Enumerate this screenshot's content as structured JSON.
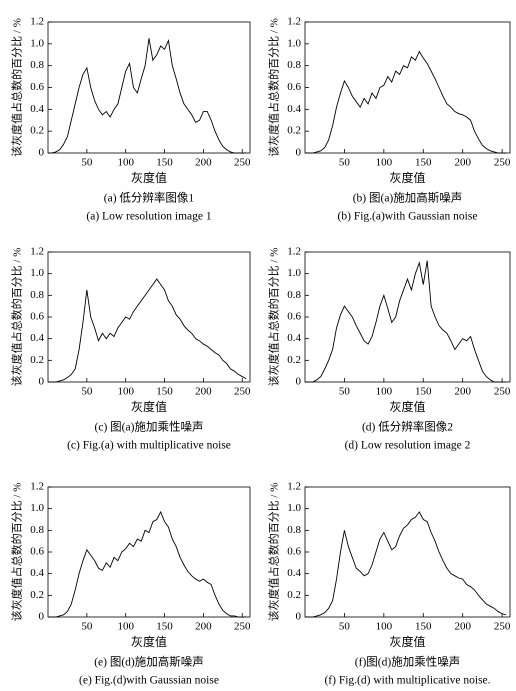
{
  "chart_data": [
    {
      "type": "line",
      "xlabel": "灰度值",
      "ylabel": "该灰度值占总数的百分比 / %",
      "caption_cn": "(a) 低分辨率图像1",
      "caption_en": "(a) Low resolution image 1",
      "color": "#000000",
      "x": [
        0,
        5,
        10,
        15,
        20,
        25,
        30,
        35,
        40,
        45,
        50,
        55,
        60,
        65,
        70,
        75,
        80,
        85,
        90,
        95,
        100,
        105,
        110,
        115,
        120,
        125,
        130,
        135,
        140,
        145,
        150,
        155,
        160,
        165,
        170,
        175,
        180,
        185,
        190,
        195,
        200,
        205,
        210,
        215,
        220,
        225,
        230,
        235,
        240,
        245,
        250,
        255
      ],
      "values": [
        0,
        0,
        0.01,
        0.03,
        0.08,
        0.15,
        0.3,
        0.45,
        0.6,
        0.72,
        0.78,
        0.6,
        0.48,
        0.4,
        0.35,
        0.38,
        0.33,
        0.4,
        0.45,
        0.6,
        0.75,
        0.82,
        0.6,
        0.55,
        0.68,
        0.8,
        1.05,
        0.85,
        0.9,
        0.98,
        0.95,
        1.03,
        0.8,
        0.68,
        0.55,
        0.45,
        0.4,
        0.35,
        0.28,
        0.3,
        0.38,
        0.38,
        0.3,
        0.2,
        0.12,
        0.06,
        0.03,
        0.01,
        0,
        0,
        0,
        0
      ],
      "xlim": [
        0,
        260
      ],
      "ylim": [
        0,
        1.2
      ],
      "xticks": [
        50,
        100,
        150,
        200,
        250
      ],
      "yticks": [
        0,
        0.2,
        0.4,
        0.6,
        0.8,
        {
          "value": 1,
          "label": "1.0"
        },
        1.2
      ]
    },
    {
      "type": "line",
      "xlabel": "灰度值",
      "ylabel": "该灰度值占总数的百分比 / %",
      "caption_cn": "(b) 图(a)施加高斯噪声",
      "caption_en": "(b) Fig.(a)with Gaussian noise",
      "color": "#000000",
      "x": [
        0,
        5,
        10,
        15,
        20,
        25,
        30,
        35,
        40,
        45,
        50,
        55,
        60,
        65,
        70,
        75,
        80,
        85,
        90,
        95,
        100,
        105,
        110,
        115,
        120,
        125,
        130,
        135,
        140,
        145,
        150,
        155,
        160,
        165,
        170,
        175,
        180,
        185,
        190,
        195,
        200,
        205,
        210,
        215,
        220,
        225,
        230,
        235,
        240,
        245,
        250,
        255
      ],
      "values": [
        0,
        0,
        0,
        0.01,
        0.02,
        0.05,
        0.12,
        0.25,
        0.42,
        0.55,
        0.66,
        0.6,
        0.52,
        0.47,
        0.42,
        0.5,
        0.45,
        0.55,
        0.5,
        0.6,
        0.62,
        0.7,
        0.65,
        0.75,
        0.72,
        0.8,
        0.78,
        0.88,
        0.85,
        0.93,
        0.87,
        0.82,
        0.75,
        0.68,
        0.6,
        0.52,
        0.45,
        0.42,
        0.38,
        0.36,
        0.35,
        0.33,
        0.3,
        0.2,
        0.13,
        0.07,
        0.04,
        0.02,
        0.01,
        0,
        0,
        0
      ],
      "xlim": [
        0,
        260
      ],
      "ylim": [
        0,
        1.2
      ],
      "xticks": [
        50,
        100,
        150,
        200,
        250
      ],
      "yticks": [
        0,
        0.2,
        0.4,
        0.6,
        0.8,
        {
          "value": 1,
          "label": "1.0"
        },
        1.2
      ]
    },
    {
      "type": "line",
      "xlabel": "灰度值",
      "ylabel": "该灰度值占总数的百分比 / %",
      "caption_cn": "(c) 图(a)施加乘性噪声",
      "caption_en": "(c) Fig.(a) with multiplicative noise",
      "color": "#000000",
      "x": [
        0,
        5,
        10,
        15,
        20,
        25,
        30,
        35,
        40,
        45,
        50,
        55,
        60,
        65,
        70,
        75,
        80,
        85,
        90,
        95,
        100,
        105,
        110,
        115,
        120,
        125,
        130,
        135,
        140,
        145,
        150,
        155,
        160,
        165,
        170,
        175,
        180,
        185,
        190,
        195,
        200,
        205,
        210,
        215,
        220,
        225,
        230,
        235,
        240,
        245,
        250,
        255
      ],
      "values": [
        0,
        0,
        0,
        0.01,
        0.02,
        0.04,
        0.07,
        0.12,
        0.3,
        0.55,
        0.85,
        0.6,
        0.5,
        0.38,
        0.45,
        0.4,
        0.45,
        0.42,
        0.5,
        0.55,
        0.6,
        0.58,
        0.65,
        0.7,
        0.75,
        0.8,
        0.85,
        0.9,
        0.95,
        0.9,
        0.85,
        0.75,
        0.7,
        0.62,
        0.58,
        0.52,
        0.48,
        0.45,
        0.4,
        0.38,
        0.35,
        0.33,
        0.3,
        0.27,
        0.25,
        0.2,
        0.17,
        0.12,
        0.1,
        0.07,
        0.05,
        0.03
      ],
      "xlim": [
        0,
        260
      ],
      "ylim": [
        0,
        1.2
      ],
      "xticks": [
        50,
        100,
        150,
        200,
        250
      ],
      "yticks": [
        0,
        0.2,
        0.4,
        0.6,
        0.8,
        {
          "value": 1,
          "label": "1.0"
        },
        1.2
      ]
    },
    {
      "type": "line",
      "xlabel": "灰度值",
      "ylabel": "该灰度值占总数的百分比 / %",
      "caption_cn": "(d) 低分辨率图像2",
      "caption_en": "(d) Low resolution image 2",
      "color": "#000000",
      "x": [
        0,
        5,
        10,
        15,
        20,
        25,
        30,
        35,
        40,
        45,
        50,
        55,
        60,
        65,
        70,
        75,
        80,
        85,
        90,
        95,
        100,
        105,
        110,
        115,
        120,
        125,
        130,
        135,
        140,
        145,
        150,
        155,
        160,
        165,
        170,
        175,
        180,
        185,
        190,
        195,
        200,
        205,
        210,
        215,
        220,
        225,
        230,
        235,
        240,
        245,
        250,
        255
      ],
      "values": [
        0,
        0,
        0,
        0.02,
        0.05,
        0.12,
        0.2,
        0.3,
        0.5,
        0.62,
        0.7,
        0.65,
        0.6,
        0.52,
        0.45,
        0.38,
        0.35,
        0.42,
        0.55,
        0.7,
        0.8,
        0.68,
        0.55,
        0.6,
        0.75,
        0.85,
        0.95,
        0.85,
        1.0,
        1.1,
        0.9,
        1.12,
        0.7,
        0.6,
        0.52,
        0.48,
        0.45,
        0.38,
        0.3,
        0.35,
        0.4,
        0.38,
        0.42,
        0.3,
        0.2,
        0.1,
        0.05,
        0.02,
        0,
        0,
        0,
        0
      ],
      "xlim": [
        0,
        260
      ],
      "ylim": [
        0,
        1.2
      ],
      "xticks": [
        50,
        100,
        150,
        200,
        250
      ],
      "yticks": [
        0,
        0.2,
        0.4,
        0.6,
        0.8,
        {
          "value": 1,
          "label": "1.0"
        },
        1.2
      ]
    },
    {
      "type": "line",
      "xlabel": "灰度值",
      "ylabel": "该灰度值占总数的百分比 / %",
      "caption_cn": "(e) 图(d)施加高斯噪声",
      "caption_en": "(e) Fig.(d)with Gaussian noise",
      "color": "#000000",
      "x": [
        0,
        5,
        10,
        15,
        20,
        25,
        30,
        35,
        40,
        45,
        50,
        55,
        60,
        65,
        70,
        75,
        80,
        85,
        90,
        95,
        100,
        105,
        110,
        115,
        120,
        125,
        130,
        135,
        140,
        145,
        150,
        155,
        160,
        165,
        170,
        175,
        180,
        185,
        190,
        195,
        200,
        205,
        210,
        215,
        220,
        225,
        230,
        235,
        240,
        245,
        250,
        255
      ],
      "values": [
        0,
        0,
        0,
        0.01,
        0.02,
        0.05,
        0.12,
        0.25,
        0.4,
        0.52,
        0.62,
        0.57,
        0.52,
        0.45,
        0.43,
        0.5,
        0.46,
        0.55,
        0.52,
        0.6,
        0.63,
        0.68,
        0.65,
        0.72,
        0.7,
        0.8,
        0.78,
        0.88,
        0.9,
        0.97,
        0.88,
        0.83,
        0.72,
        0.65,
        0.55,
        0.48,
        0.42,
        0.38,
        0.35,
        0.33,
        0.35,
        0.32,
        0.3,
        0.2,
        0.12,
        0.06,
        0.03,
        0.01,
        0.01,
        0,
        0,
        0
      ],
      "xlim": [
        0,
        260
      ],
      "ylim": [
        0,
        1.2
      ],
      "xticks": [
        50,
        100,
        150,
        200,
        250
      ],
      "yticks": [
        0,
        0.2,
        0.4,
        0.6,
        0.8,
        {
          "value": 1,
          "label": "1.0"
        },
        1.2
      ]
    },
    {
      "type": "line",
      "xlabel": "灰度值",
      "ylabel": "该灰度值占总数的百分比 / %",
      "caption_cn": "(f)图(d)施加乘性噪声",
      "caption_en": "(f) Fig.(d) with multiplicative noise.",
      "color": "#000000",
      "x": [
        0,
        5,
        10,
        15,
        20,
        25,
        30,
        35,
        40,
        45,
        50,
        55,
        60,
        65,
        70,
        75,
        80,
        85,
        90,
        95,
        100,
        105,
        110,
        115,
        120,
        125,
        130,
        135,
        140,
        145,
        150,
        155,
        160,
        165,
        170,
        175,
        180,
        185,
        190,
        195,
        200,
        205,
        210,
        215,
        220,
        225,
        230,
        235,
        240,
        245,
        250,
        255
      ],
      "values": [
        0,
        0,
        0,
        0.01,
        0.02,
        0.04,
        0.08,
        0.15,
        0.35,
        0.6,
        0.8,
        0.65,
        0.55,
        0.45,
        0.42,
        0.38,
        0.4,
        0.48,
        0.6,
        0.72,
        0.78,
        0.7,
        0.62,
        0.65,
        0.75,
        0.82,
        0.85,
        0.9,
        0.92,
        0.97,
        0.9,
        0.88,
        0.78,
        0.7,
        0.6,
        0.52,
        0.45,
        0.4,
        0.38,
        0.36,
        0.35,
        0.3,
        0.28,
        0.25,
        0.2,
        0.16,
        0.12,
        0.1,
        0.08,
        0.05,
        0.03,
        0.02
      ],
      "xlim": [
        0,
        260
      ],
      "ylim": [
        0,
        1.2
      ],
      "xticks": [
        50,
        100,
        150,
        200,
        250
      ],
      "yticks": [
        0,
        0.2,
        0.4,
        0.6,
        0.8,
        {
          "value": 1,
          "label": "1.0"
        },
        1.2
      ]
    }
  ]
}
